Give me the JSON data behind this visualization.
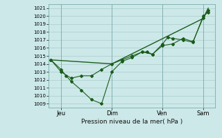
{
  "background_color": "#cce8e8",
  "grid_color": "#aacccc",
  "line_color": "#1a5c1a",
  "title": "Pression niveau de la mer( hPa )",
  "x_ticks_labels": [
    "Jeu",
    "Dim",
    "Ven",
    "Sam"
  ],
  "x_ticks_pos": [
    0.5,
    3.0,
    5.5,
    7.5
  ],
  "xlim": [
    -0.1,
    8.1
  ],
  "ylim": [
    1008.5,
    1021.5
  ],
  "yticks": [
    1009,
    1010,
    1011,
    1012,
    1013,
    1014,
    1015,
    1016,
    1017,
    1018,
    1019,
    1020,
    1021
  ],
  "series1": {
    "x": [
      0.0,
      0.5,
      0.75,
      1.0,
      1.5,
      2.0,
      2.5,
      3.0,
      3.5,
      4.0,
      4.5,
      4.75,
      5.0,
      5.5,
      5.75,
      6.0,
      6.5,
      7.0,
      7.5,
      7.75
    ],
    "y": [
      1014.5,
      1013.3,
      1012.5,
      1011.8,
      1010.7,
      1009.5,
      1009.0,
      1013.0,
      1014.3,
      1014.8,
      1015.5,
      1015.5,
      1015.2,
      1016.5,
      1017.3,
      1017.2,
      1017.0,
      1016.7,
      1020.0,
      1020.5
    ]
  },
  "series2": {
    "x": [
      0.0,
      0.5,
      1.0,
      1.5,
      2.0,
      2.5,
      3.0,
      3.5,
      4.0,
      4.5,
      5.0,
      5.5,
      6.0,
      6.5,
      7.0,
      7.5,
      7.75
    ],
    "y": [
      1014.5,
      1013.0,
      1012.2,
      1012.5,
      1012.5,
      1013.3,
      1014.0,
      1014.5,
      1015.0,
      1015.5,
      1015.2,
      1016.3,
      1016.5,
      1017.2,
      1016.8,
      1019.8,
      1020.7
    ]
  },
  "series3": {
    "x": [
      0.0,
      3.0,
      7.5,
      7.75
    ],
    "y": [
      1014.5,
      1014.0,
      1019.7,
      1021.0
    ]
  }
}
